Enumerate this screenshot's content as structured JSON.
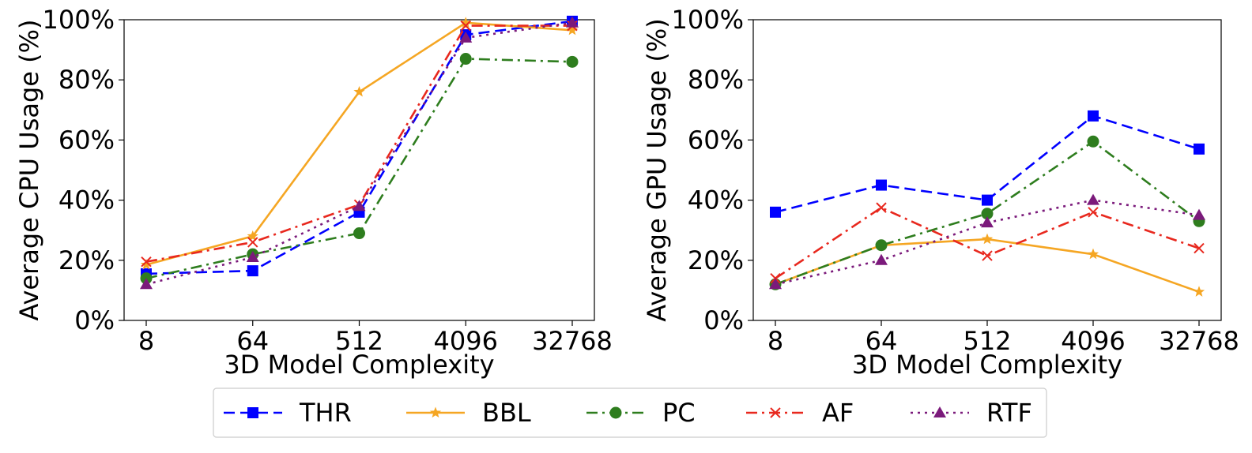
{
  "chart_data": [
    {
      "type": "line",
      "xlabel": "3D Model Complexity",
      "ylabel": "Average CPU Usage (%)",
      "categories": [
        "8",
        "64",
        "512",
        "4096",
        "32768"
      ],
      "ylim": [
        0,
        100
      ],
      "yticks": [
        "0%",
        "20%",
        "40%",
        "60%",
        "80%",
        "100%"
      ],
      "ytick_values": [
        0,
        20,
        40,
        60,
        80,
        100
      ],
      "grid": false,
      "series": [
        {
          "name": "THR",
          "values": [
            15.5,
            16.5,
            36,
            95,
            99.5
          ]
        },
        {
          "name": "BBL",
          "values": [
            18.5,
            28,
            76,
            99,
            96.5
          ]
        },
        {
          "name": "PC",
          "values": [
            14,
            22,
            29,
            87,
            86
          ]
        },
        {
          "name": "AF",
          "values": [
            19.5,
            26,
            38.5,
            98,
            98
          ]
        },
        {
          "name": "RTF",
          "values": [
            12,
            21,
            38,
            94,
            99
          ]
        }
      ]
    },
    {
      "type": "line",
      "xlabel": "3D Model Complexity",
      "ylabel": "Average GPU Usage (%)",
      "categories": [
        "8",
        "64",
        "512",
        "4096",
        "32768"
      ],
      "ylim": [
        0,
        100
      ],
      "yticks": [
        "0%",
        "20%",
        "40%",
        "60%",
        "80%",
        "100%"
      ],
      "ytick_values": [
        0,
        20,
        40,
        60,
        80,
        100
      ],
      "grid": false,
      "series": [
        {
          "name": "THR",
          "values": [
            36,
            45,
            40,
            68,
            57
          ]
        },
        {
          "name": "BBL",
          "values": [
            12,
            25,
            27,
            22,
            9.5
          ]
        },
        {
          "name": "PC",
          "values": [
            12,
            25,
            35.5,
            59.5,
            33
          ]
        },
        {
          "name": "AF",
          "values": [
            14,
            37.5,
            21.5,
            36,
            24
          ]
        },
        {
          "name": "RTF",
          "values": [
            12,
            20,
            32.5,
            40,
            35
          ]
        }
      ]
    }
  ],
  "series_styles": [
    {
      "name": "THR",
      "color": "#0000ff",
      "dash": "dashed",
      "marker": "square"
    },
    {
      "name": "BBL",
      "color": "#f5a623",
      "dash": "solid",
      "marker": "star"
    },
    {
      "name": "PC",
      "color": "#2e7d1e",
      "dash": "dashdot",
      "marker": "circle"
    },
    {
      "name": "AF",
      "color": "#e8281e",
      "dash": "dashdot",
      "marker": "x"
    },
    {
      "name": "RTF",
      "color": "#7b1a7b",
      "dash": "dotted",
      "marker": "triangle"
    }
  ],
  "legend": {
    "placement": "bottom-center",
    "entries": [
      "THR",
      "BBL",
      "PC",
      "AF",
      "RTF"
    ]
  }
}
